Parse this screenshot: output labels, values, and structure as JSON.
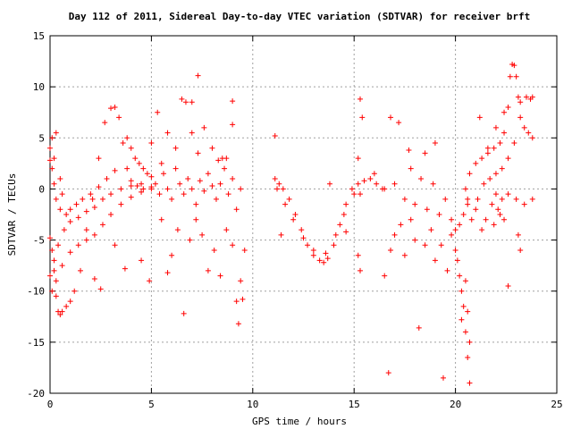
{
  "chart_data": {
    "type": "scatter",
    "title": "Day 112 of 2011, Sidereal Day-to-day VTEC variation (SDTVAR) for receiver brft",
    "xlabel": "GPS time / hours",
    "ylabel": "SDTVAR / TECUs",
    "xlim": [
      0,
      25
    ],
    "ylim": [
      -20,
      15
    ],
    "xticks": [
      0,
      5,
      10,
      15,
      20,
      25
    ],
    "yticks": [
      15,
      10,
      5,
      0,
      -5,
      -10,
      -15,
      -20
    ],
    "xtick_labels": [
      "0",
      "5",
      "10",
      "15",
      "20",
      "25"
    ],
    "ytick_labels": [
      "15",
      "10",
      "5",
      "0",
      "-5",
      "-10",
      "-15",
      "-20"
    ],
    "grid": true,
    "marker": "+",
    "color": "#ff0000",
    "series": [
      {
        "name": "SDTVAR",
        "points": [
          [
            0.0,
            -4.8
          ],
          [
            0.1,
            -6.0
          ],
          [
            0.2,
            -8.0
          ],
          [
            0.3,
            -10.5
          ],
          [
            0.4,
            -12.0
          ],
          [
            0.5,
            -12.3
          ],
          [
            0.6,
            -12.0
          ],
          [
            0.8,
            -11.5
          ],
          [
            1.0,
            -11.0
          ],
          [
            1.2,
            -10.0
          ],
          [
            1.5,
            -8.0
          ],
          [
            1.8,
            -4.0
          ],
          [
            2.1,
            -1.0
          ],
          [
            2.4,
            3.0
          ],
          [
            2.7,
            6.5
          ],
          [
            3.0,
            7.9
          ],
          [
            3.2,
            8.0
          ],
          [
            3.4,
            7.0
          ],
          [
            3.6,
            4.5
          ],
          [
            3.8,
            2.0
          ],
          [
            4.0,
            0.8
          ],
          [
            4.3,
            0.3
          ],
          [
            4.6,
            0.0
          ],
          [
            0.0,
            2.8
          ],
          [
            0.1,
            2.0
          ],
          [
            0.2,
            0.5
          ],
          [
            0.3,
            -1.0
          ],
          [
            0.5,
            -2.0
          ],
          [
            0.8,
            -2.5
          ],
          [
            1.0,
            -2.0
          ],
          [
            1.3,
            -1.5
          ],
          [
            1.6,
            -1.0
          ],
          [
            2.0,
            -0.5
          ],
          [
            2.4,
            0.2
          ],
          [
            2.8,
            1.0
          ],
          [
            3.2,
            1.8
          ],
          [
            0.0,
            -8.5
          ],
          [
            0.2,
            -7.0
          ],
          [
            0.4,
            -5.5
          ],
          [
            0.7,
            -4.0
          ],
          [
            1.0,
            -3.2
          ],
          [
            1.4,
            -2.8
          ],
          [
            1.8,
            -2.2
          ],
          [
            2.2,
            -1.8
          ],
          [
            2.6,
            -1.0
          ],
          [
            3.0,
            -0.5
          ],
          [
            3.5,
            0.0
          ],
          [
            4.0,
            0.3
          ],
          [
            4.5,
            0.5
          ],
          [
            5.0,
            0.2
          ],
          [
            0.1,
            -10.0
          ],
          [
            0.3,
            -9.0
          ],
          [
            0.6,
            -7.5
          ],
          [
            1.0,
            -6.2
          ],
          [
            1.4,
            -5.5
          ],
          [
            1.8,
            -5.0
          ],
          [
            2.2,
            -4.5
          ],
          [
            2.6,
            -3.5
          ],
          [
            3.0,
            -2.5
          ],
          [
            3.5,
            -1.5
          ],
          [
            4.0,
            -0.8
          ],
          [
            4.5,
            -0.3
          ],
          [
            0.0,
            4.0
          ],
          [
            0.1,
            5.0
          ],
          [
            0.2,
            3.0
          ],
          [
            0.3,
            5.5
          ],
          [
            0.5,
            1.0
          ],
          [
            0.6,
            -0.5
          ],
          [
            3.8,
            5.0
          ],
          [
            4.0,
            4.0
          ],
          [
            4.2,
            3.0
          ],
          [
            4.4,
            2.5
          ],
          [
            4.6,
            2.0
          ],
          [
            4.8,
            1.5
          ],
          [
            5.0,
            1.2
          ],
          [
            5.0,
            0.0
          ],
          [
            5.2,
            0.5
          ],
          [
            5.4,
            -0.5
          ],
          [
            5.6,
            1.5
          ],
          [
            5.8,
            0.0
          ],
          [
            6.0,
            -1.0
          ],
          [
            6.2,
            2.0
          ],
          [
            6.4,
            0.5
          ],
          [
            6.6,
            -0.5
          ],
          [
            6.8,
            1.0
          ],
          [
            7.0,
            0.0
          ],
          [
            7.2,
            -1.5
          ],
          [
            7.4,
            0.8
          ],
          [
            7.6,
            -0.2
          ],
          [
            7.8,
            1.5
          ],
          [
            8.0,
            0.3
          ],
          [
            8.2,
            -1.0
          ],
          [
            8.4,
            0.5
          ],
          [
            8.6,
            2.0
          ],
          [
            8.8,
            -0.5
          ],
          [
            9.0,
            1.0
          ],
          [
            9.2,
            -2.0
          ],
          [
            9.4,
            0.0
          ],
          [
            5.0,
            4.5
          ],
          [
            5.3,
            7.5
          ],
          [
            5.5,
            2.5
          ],
          [
            5.8,
            5.5
          ],
          [
            6.2,
            4.0
          ],
          [
            6.5,
            8.8
          ],
          [
            6.7,
            8.5
          ],
          [
            7.0,
            5.5
          ],
          [
            7.3,
            3.5
          ],
          [
            7.6,
            6.0
          ],
          [
            8.0,
            4.0
          ],
          [
            8.3,
            2.8
          ],
          [
            8.7,
            3.0
          ],
          [
            9.0,
            8.6
          ],
          [
            5.5,
            -3.0
          ],
          [
            6.0,
            -6.5
          ],
          [
            6.3,
            -4.0
          ],
          [
            6.6,
            -12.2
          ],
          [
            6.9,
            -5.0
          ],
          [
            7.2,
            -3.0
          ],
          [
            7.5,
            -4.5
          ],
          [
            7.8,
            -8.0
          ],
          [
            8.1,
            -6.0
          ],
          [
            8.4,
            -8.5
          ],
          [
            8.7,
            -4.0
          ],
          [
            9.0,
            -5.5
          ],
          [
            9.2,
            -11.0
          ],
          [
            9.3,
            -13.2
          ],
          [
            9.4,
            -9.0
          ],
          [
            9.5,
            -10.8
          ],
          [
            9.6,
            -6.0
          ],
          [
            4.9,
            -9.0
          ],
          [
            3.7,
            -7.8
          ],
          [
            3.2,
            -5.5
          ],
          [
            2.5,
            -9.8
          ],
          [
            2.2,
            -8.8
          ],
          [
            4.5,
            -7.0
          ],
          [
            5.8,
            -8.2
          ],
          [
            7.3,
            11.1
          ],
          [
            9.0,
            6.3
          ],
          [
            8.5,
            3.0
          ],
          [
            7.0,
            8.5
          ],
          [
            11.1,
            5.2
          ],
          [
            11.1,
            1.0
          ],
          [
            11.3,
            0.5
          ],
          [
            11.5,
            0.0
          ],
          [
            11.8,
            -1.0
          ],
          [
            12.1,
            -2.5
          ],
          [
            12.4,
            -4.0
          ],
          [
            12.7,
            -5.5
          ],
          [
            13.0,
            -6.5
          ],
          [
            13.3,
            -7.0
          ],
          [
            13.5,
            -7.2
          ],
          [
            13.7,
            -6.8
          ],
          [
            14.0,
            -5.5
          ],
          [
            14.3,
            -3.5
          ],
          [
            14.6,
            -1.5
          ],
          [
            14.9,
            0.0
          ],
          [
            15.2,
            0.5
          ],
          [
            15.5,
            0.8
          ],
          [
            15.8,
            1.0
          ],
          [
            16.1,
            0.5
          ],
          [
            16.4,
            0.0
          ],
          [
            11.2,
            0.0
          ],
          [
            11.6,
            -1.5
          ],
          [
            12.0,
            -3.0
          ],
          [
            12.5,
            -4.8
          ],
          [
            13.0,
            -6.0
          ],
          [
            13.6,
            -6.3
          ],
          [
            14.1,
            -4.5
          ],
          [
            14.5,
            -2.5
          ],
          [
            15.0,
            -0.5
          ],
          [
            11.4,
            -4.5
          ],
          [
            13.8,
            0.5
          ],
          [
            14.6,
            -4.2
          ],
          [
            15.2,
            -6.5
          ],
          [
            15.3,
            -8.0
          ],
          [
            15.3,
            8.8
          ],
          [
            15.4,
            7.0
          ],
          [
            15.2,
            3.0
          ],
          [
            15.3,
            -0.5
          ],
          [
            16.0,
            1.5
          ],
          [
            16.5,
            0.0
          ],
          [
            16.8,
            7.0
          ],
          [
            17.0,
            0.5
          ],
          [
            17.2,
            6.5
          ],
          [
            17.5,
            -1.0
          ],
          [
            17.8,
            2.0
          ],
          [
            18.0,
            -1.5
          ],
          [
            18.3,
            1.0
          ],
          [
            18.6,
            -2.0
          ],
          [
            18.9,
            0.5
          ],
          [
            19.2,
            -2.5
          ],
          [
            19.5,
            -1.0
          ],
          [
            19.8,
            -3.0
          ],
          [
            20.0,
            -4.0
          ],
          [
            20.2,
            -3.5
          ],
          [
            20.4,
            -2.5
          ],
          [
            20.6,
            -1.0
          ],
          [
            16.5,
            -8.5
          ],
          [
            16.8,
            -6.0
          ],
          [
            17.0,
            -4.5
          ],
          [
            17.3,
            -3.5
          ],
          [
            17.5,
            -6.5
          ],
          [
            17.8,
            -3.0
          ],
          [
            18.0,
            -5.0
          ],
          [
            18.2,
            -13.6
          ],
          [
            18.5,
            -5.5
          ],
          [
            18.8,
            -4.0
          ],
          [
            19.0,
            -7.0
          ],
          [
            19.3,
            -5.5
          ],
          [
            19.6,
            -8.0
          ],
          [
            19.8,
            -4.5
          ],
          [
            16.7,
            -18.0
          ],
          [
            19.4,
            -18.5
          ],
          [
            19.0,
            4.5
          ],
          [
            18.5,
            3.5
          ],
          [
            17.7,
            3.8
          ],
          [
            20.0,
            -6.0
          ],
          [
            20.1,
            -7.0
          ],
          [
            20.2,
            -8.5
          ],
          [
            20.3,
            -10.0
          ],
          [
            20.4,
            -11.5
          ],
          [
            20.5,
            -14.0
          ],
          [
            20.6,
            -16.5
          ],
          [
            20.7,
            -19.0
          ],
          [
            20.6,
            -12.0
          ],
          [
            20.5,
            -9.0
          ],
          [
            20.3,
            -12.8
          ],
          [
            20.7,
            -15.0
          ],
          [
            20.5,
            0.0
          ],
          [
            20.7,
            1.5
          ],
          [
            21.0,
            2.5
          ],
          [
            21.3,
            3.0
          ],
          [
            21.6,
            3.5
          ],
          [
            21.9,
            4.0
          ],
          [
            22.2,
            4.5
          ],
          [
            22.4,
            5.5
          ],
          [
            22.6,
            8.0
          ],
          [
            22.7,
            11.0
          ],
          [
            22.8,
            12.2
          ],
          [
            22.9,
            12.1
          ],
          [
            23.0,
            11.0
          ],
          [
            23.1,
            9.0
          ],
          [
            23.2,
            7.0
          ],
          [
            23.4,
            6.0
          ],
          [
            23.6,
            5.5
          ],
          [
            23.8,
            5.0
          ],
          [
            20.8,
            -3.0
          ],
          [
            21.1,
            -1.0
          ],
          [
            21.4,
            0.5
          ],
          [
            21.7,
            1.0
          ],
          [
            22.0,
            1.5
          ],
          [
            22.3,
            2.0
          ],
          [
            22.6,
            3.0
          ],
          [
            22.9,
            4.5
          ],
          [
            23.2,
            8.5
          ],
          [
            23.5,
            9.0
          ],
          [
            23.7,
            8.8
          ],
          [
            23.8,
            9.0
          ],
          [
            20.6,
            -1.5
          ],
          [
            21.0,
            -2.0
          ],
          [
            21.5,
            -3.0
          ],
          [
            21.8,
            -1.5
          ],
          [
            22.0,
            -0.5
          ],
          [
            22.3,
            -1.0
          ],
          [
            22.6,
            -0.5
          ],
          [
            23.0,
            -1.0
          ],
          [
            23.4,
            -1.5
          ],
          [
            23.8,
            -1.0
          ],
          [
            21.2,
            7.0
          ],
          [
            21.6,
            4.0
          ],
          [
            22.0,
            6.0
          ],
          [
            22.4,
            7.5
          ],
          [
            21.9,
            -3.5
          ],
          [
            22.1,
            -2.0
          ],
          [
            21.3,
            -4.0
          ],
          [
            22.4,
            -3.0
          ],
          [
            22.6,
            -9.5
          ],
          [
            23.1,
            -4.5
          ],
          [
            23.2,
            -6.0
          ],
          [
            22.2,
            -2.5
          ]
        ]
      }
    ]
  }
}
